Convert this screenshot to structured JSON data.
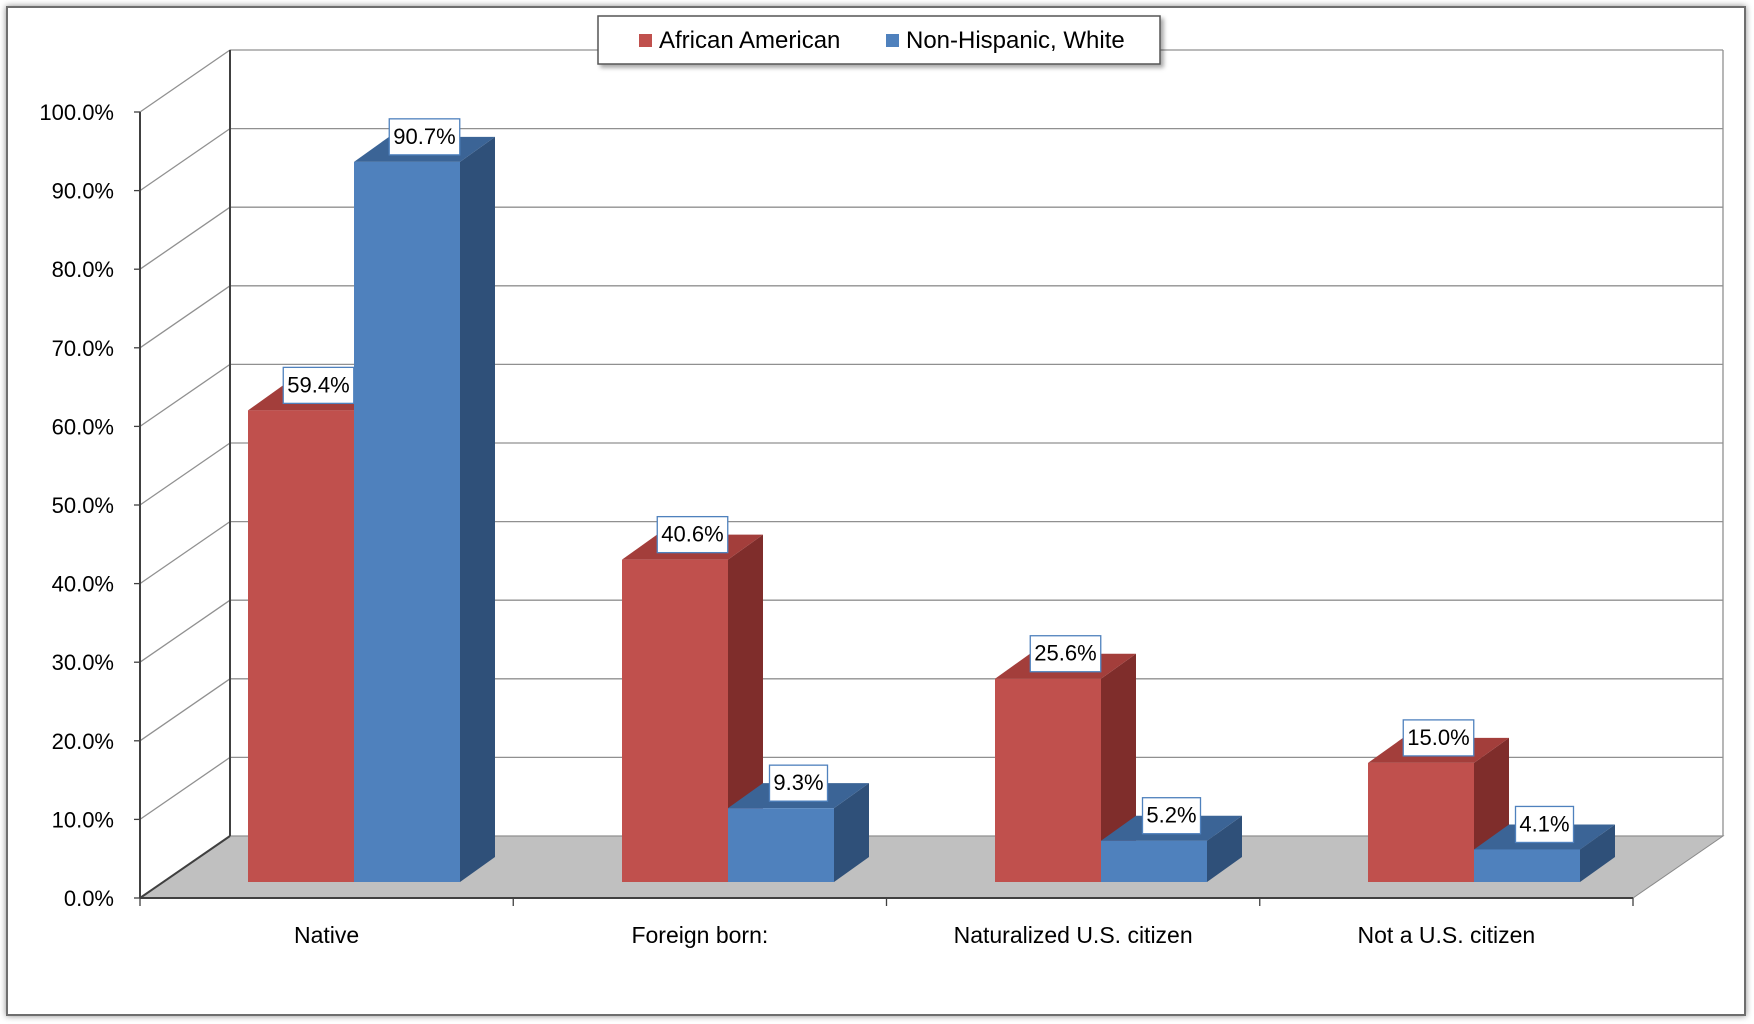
{
  "chart_data": {
    "type": "bar",
    "title": "",
    "xlabel": "",
    "ylabel": "",
    "categories": [
      "Native",
      "Foreign born:",
      "Naturalized U.S. citizen",
      "Not a U.S. citizen"
    ],
    "series": [
      {
        "name": "African American",
        "values": [
          59.4,
          40.6,
          25.6,
          15.0
        ],
        "labels": [
          "59.4%",
          "40.6%",
          "25.6%",
          "15.0%"
        ],
        "color": "#C0504D",
        "side_color": "#7F2D2B",
        "top_color": "#A33E3B"
      },
      {
        "name": "Non-Hispanic, White",
        "values": [
          90.7,
          9.3,
          5.2,
          4.1
        ],
        "labels": [
          "90.7%",
          "9.3%",
          "5.2%",
          "4.1%"
        ],
        "color": "#4F81BD",
        "side_color": "#2F5079",
        "top_color": "#3B6496"
      }
    ],
    "ylim": [
      0,
      100
    ],
    "yticks": [
      0,
      10,
      20,
      30,
      40,
      50,
      60,
      70,
      80,
      90,
      100
    ],
    "ytick_labels": [
      "0.0%",
      "10.0%",
      "20.0%",
      "30.0%",
      "40.0%",
      "50.0%",
      "60.0%",
      "70.0%",
      "80.0%",
      "90.0%",
      "100.0%"
    ],
    "grid": true,
    "legend_position": "top-center",
    "style": "3d-clustered-column",
    "floor_color": "#C0C0C0"
  }
}
